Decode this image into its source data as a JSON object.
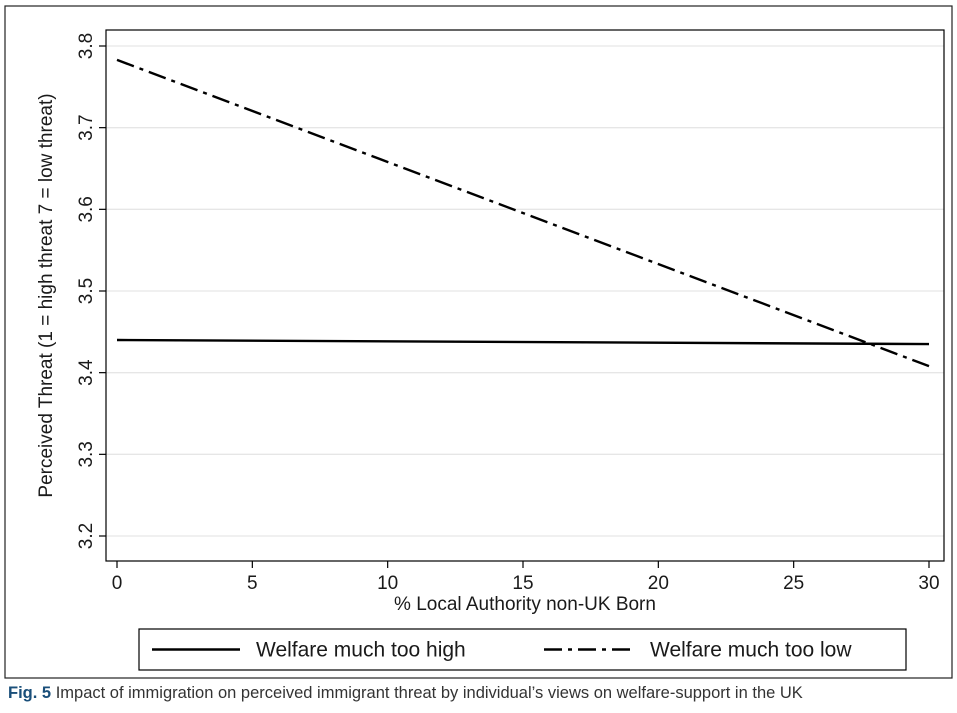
{
  "caption": {
    "label": "Fig. 5",
    "text": "Impact of immigration on perceived immigrant threat by individual’s views on welfare-support in the UK"
  },
  "chart_data": {
    "type": "line",
    "xlabel": "% Local Authority non-UK Born",
    "ylabel": "Perceived Threat (1 = high threat 7 = low threat)",
    "xlim": [
      0,
      30
    ],
    "ylim": [
      3.2,
      3.8
    ],
    "xticks": [
      0,
      5,
      10,
      15,
      20,
      25,
      30
    ],
    "yticks": [
      3.2,
      3.3,
      3.4,
      3.5,
      3.6,
      3.7,
      3.8
    ],
    "grid": true,
    "legend_position": "bottom",
    "series": [
      {
        "name": "Welfare much too high",
        "style": "solid",
        "color": "#000000",
        "x": [
          0,
          30
        ],
        "y": [
          3.44,
          3.435
        ]
      },
      {
        "name": "Welfare much too low",
        "style": "dash-dot",
        "color": "#000000",
        "x": [
          0,
          30
        ],
        "y": [
          3.783,
          3.408
        ]
      }
    ]
  }
}
